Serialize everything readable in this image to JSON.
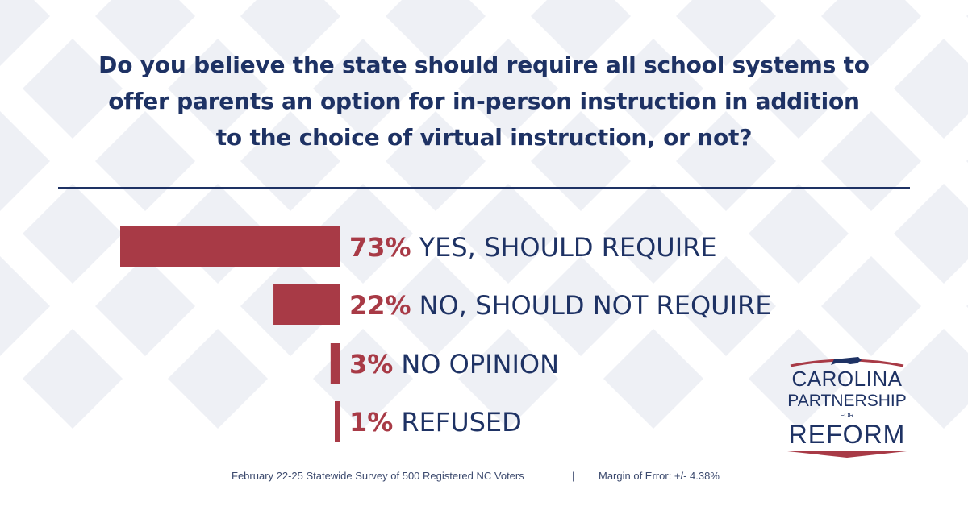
{
  "question": {
    "line1": "Do you believe the state should require all school systems to",
    "line2": "offer parents an option for in-person instruction in addition",
    "line3": "to the choice of virtual instruction, or not?"
  },
  "chart_data": {
    "type": "bar",
    "orientation": "horizontal",
    "categories": [
      "YES, SHOULD REQUIRE",
      "NO, SHOULD NOT REQUIRE",
      "NO OPINION",
      "REFUSED"
    ],
    "values": [
      73,
      22,
      3,
      1
    ],
    "value_labels": [
      "73%",
      "22%",
      "3%",
      "1%"
    ],
    "unit": "%",
    "xlim": [
      0,
      73
    ],
    "grid": false,
    "legend": "none"
  },
  "footer": {
    "survey": "February 22-25 Statewide Survey of 500 Registered NC Voters",
    "separator": "|",
    "margin": "Margin of Error: +/- 4.38%"
  },
  "logo": {
    "line1": "CAROLINA",
    "line2": "PARTNERSHIP",
    "line3": "FOR",
    "line4": "REFORM",
    "icon": "north-carolina-state-icon"
  },
  "colors": {
    "navy": "#1e3264",
    "bar_red": "#a83a46",
    "pattern": "#eef0f5"
  }
}
